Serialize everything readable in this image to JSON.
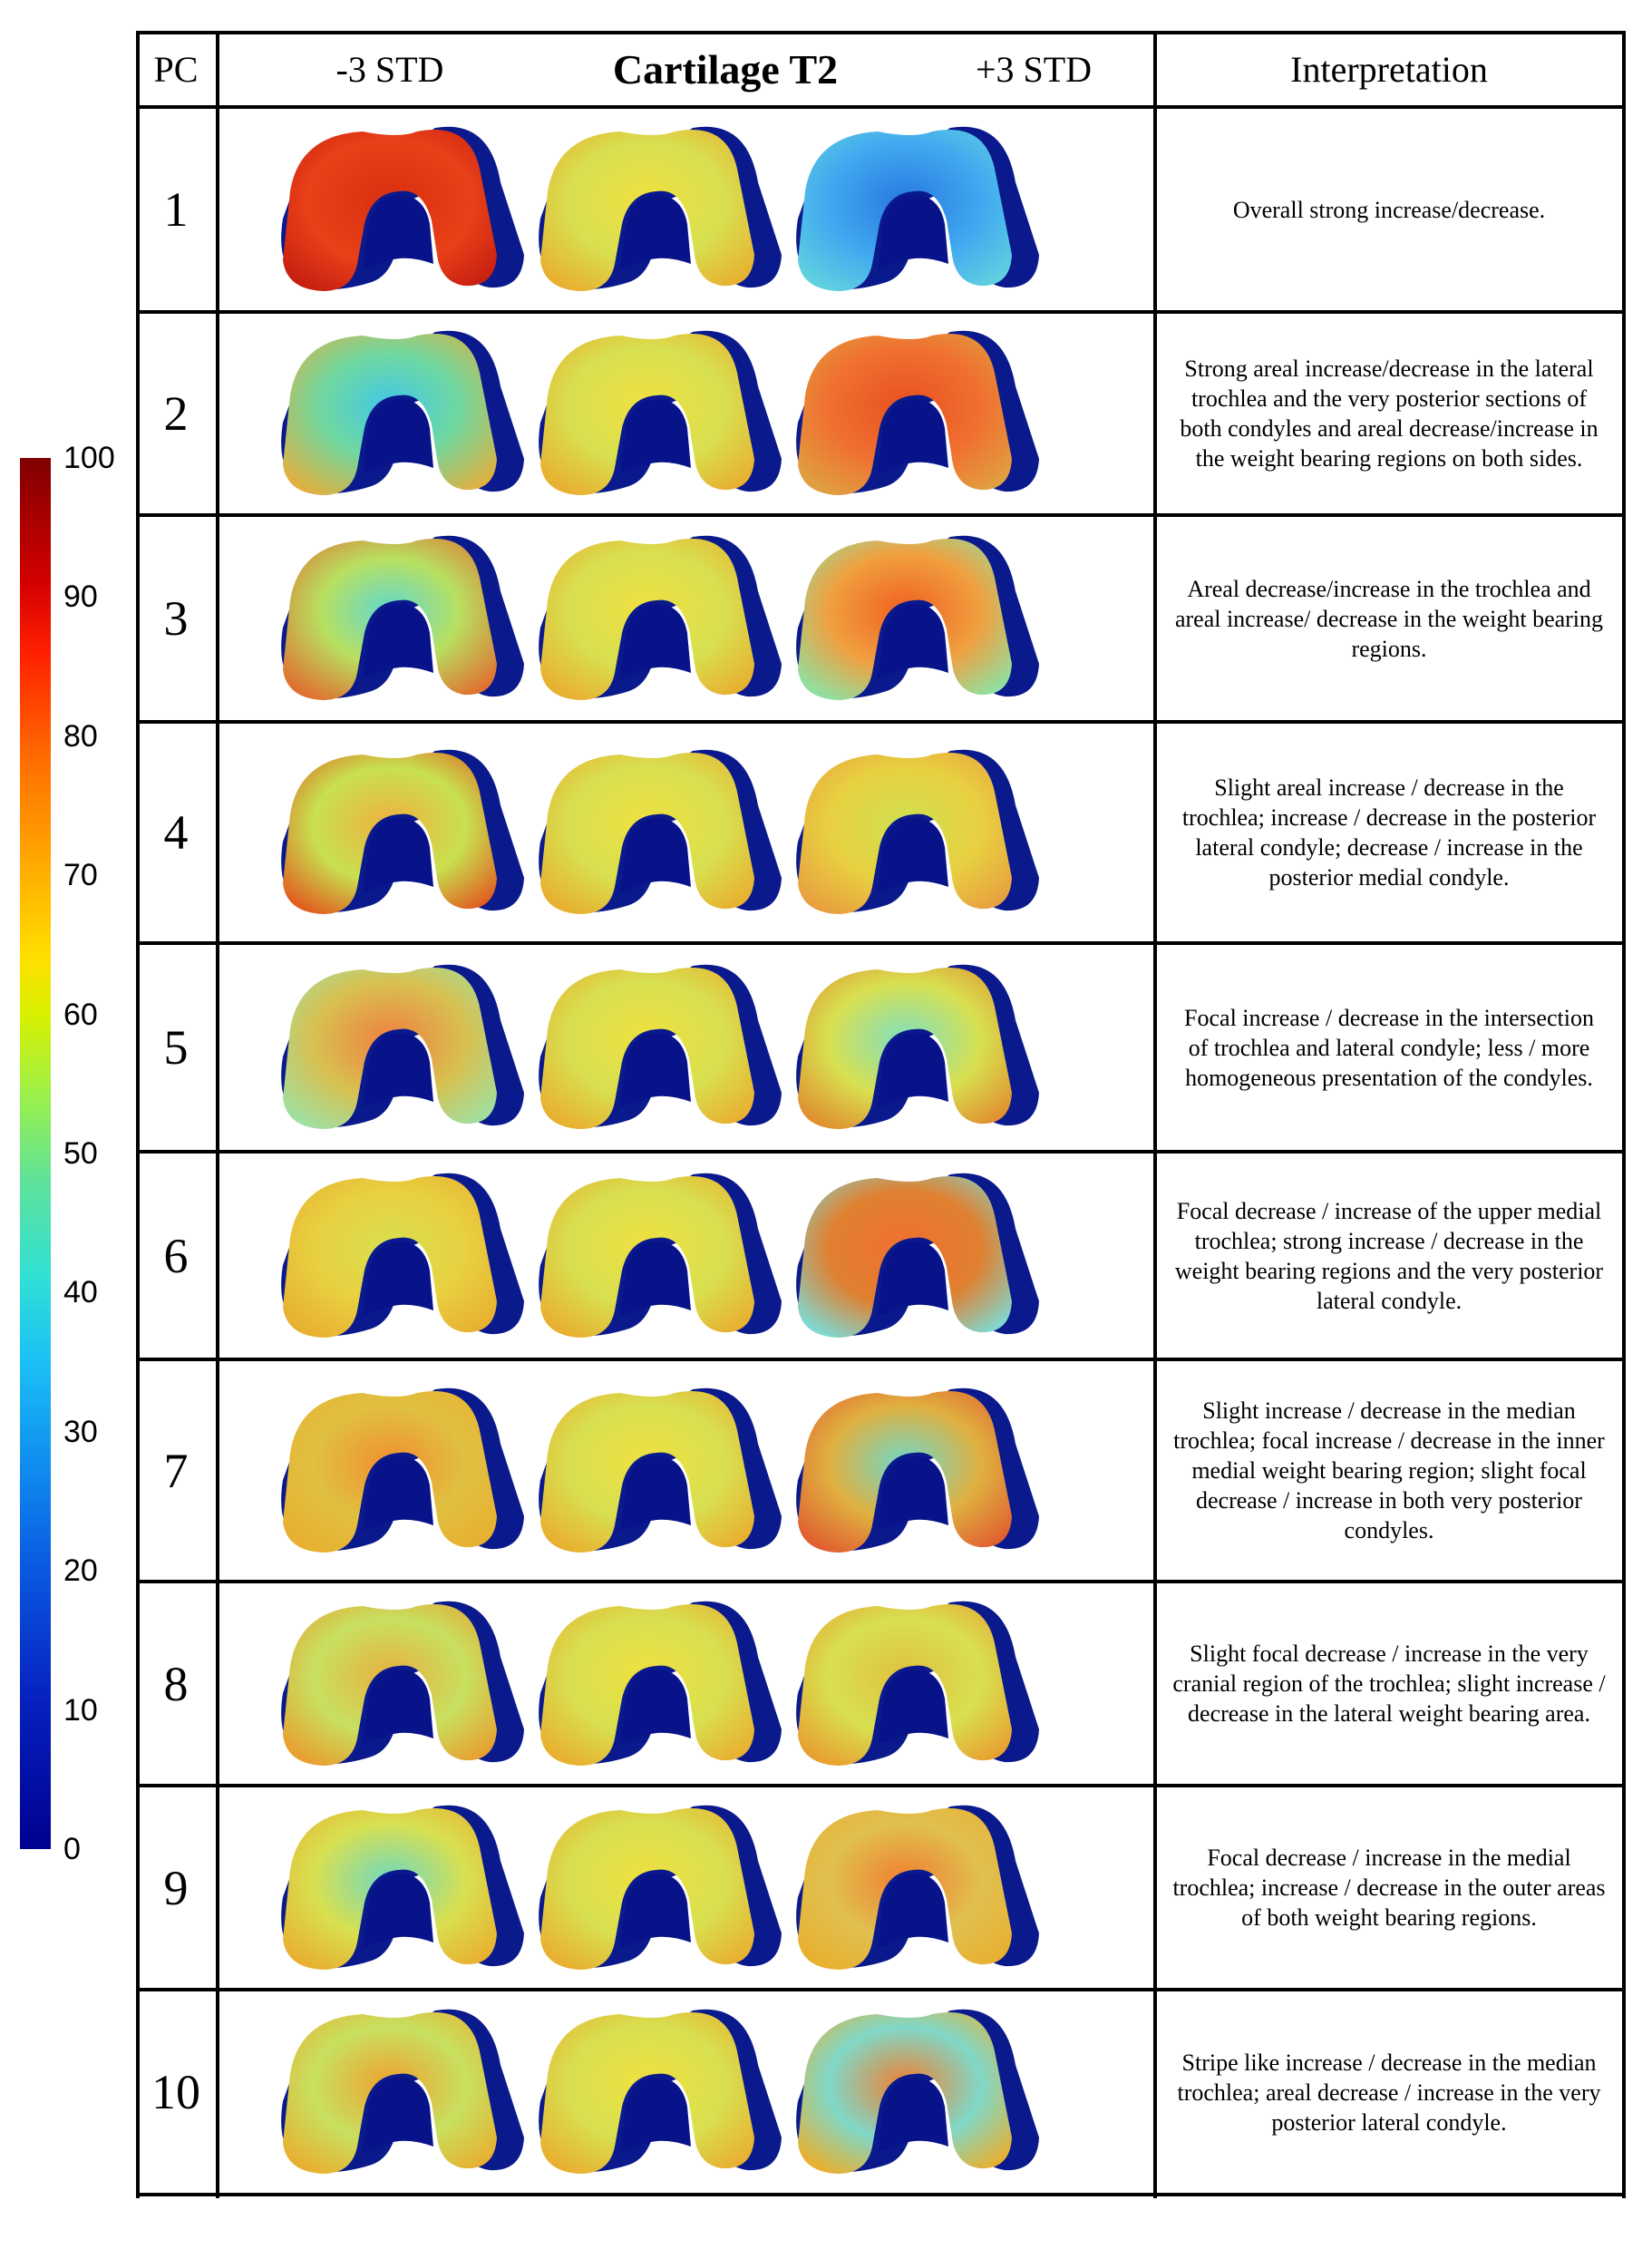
{
  "colorbar": {
    "ticks": [
      "100",
      "90",
      "80",
      "70",
      "60",
      "50",
      "40",
      "30",
      "20",
      "10",
      "0"
    ],
    "colors": [
      "#7f0000",
      "#ff2000",
      "#ffb000",
      "#ffe000",
      "#9af04c",
      "#30e0d6",
      "#1090f0",
      "#0622c0",
      "#00008f"
    ]
  },
  "header": {
    "pc": "PC",
    "minus": "-3 STD",
    "title": "Cartilage T2",
    "plus": "+3 STD",
    "interpretation": "Interpretation"
  },
  "rows": [
    {
      "pc": "1",
      "text": "Overall strong increase/decrease."
    },
    {
      "pc": "2",
      "text": "Strong areal increase/decrease in the lateral trochlea and the very posterior sections of both condyles and areal decrease/increase in the weight bearing regions on both sides."
    },
    {
      "pc": "3",
      "text": "Areal decrease/increase in the trochlea and areal increase/ decrease in the weight bearing regions."
    },
    {
      "pc": "4",
      "text": "Slight areal increase / decrease in the trochlea; increase / decrease in the posterior lateral condyle; decrease / increase in the posterior medial condyle."
    },
    {
      "pc": "5",
      "text": "Focal increase / decrease in the intersection of trochlea and lateral condyle; less / more homogeneous presentation of the condyles."
    },
    {
      "pc": "6",
      "text": "Focal decrease / increase of the upper medial trochlea; strong increase / decrease in the weight bearing regions and the very posterior lateral condyle."
    },
    {
      "pc": "7",
      "text": "Slight increase / decrease in the median trochlea; focal increase / decrease in the inner medial weight bearing region; slight focal decrease / increase in both very posterior condyles."
    },
    {
      "pc": "8",
      "text": "Slight focal decrease / increase in the very cranial region of the trochlea; slight increase / decrease in the lateral weight bearing area."
    },
    {
      "pc": "9",
      "text": "Focal decrease / increase in the medial trochlea; increase / decrease in the outer areas of both weight bearing regions."
    },
    {
      "pc": "10",
      "text": "Stripe like increase / decrease in the median trochlea; areal decrease / increase in the very posterior lateral condyle."
    }
  ]
}
